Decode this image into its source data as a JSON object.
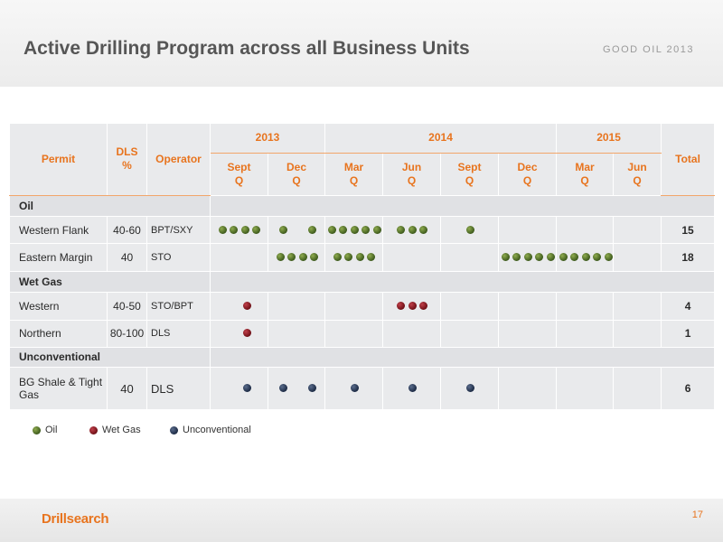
{
  "slide": {
    "title": "Active Drilling Program across all Business Units",
    "conference": "GOOD OIL 2013",
    "page_number": "17",
    "logo_text": "Drillsearch"
  },
  "table": {
    "headers": {
      "permit": "Permit",
      "dls_pct": "DLS %",
      "operator": "Operator",
      "total": "Total",
      "years": [
        "2013",
        "2014",
        "2015"
      ],
      "quarters": [
        "Sept Q",
        "Dec Q",
        "Mar Q",
        "Jun Q",
        "Sept Q",
        "Dec Q",
        "Mar Q",
        "Jun Q"
      ]
    },
    "sections": [
      {
        "name": "Oil",
        "rows": [
          {
            "permit": "Western Flank",
            "dls": "40-60",
            "operator": "BPT/SXY",
            "total": "15",
            "dot_type": "oil",
            "quarter_counts": [
              4,
              2,
              5,
              3,
              1,
              0,
              0,
              0
            ]
          },
          {
            "permit": "Eastern Margin",
            "dls": "40",
            "operator": "STO",
            "total": "18",
            "dot_type": "oil",
            "quarter_counts": [
              0,
              4,
              4,
              0,
              0,
              5,
              5,
              0
            ]
          }
        ]
      },
      {
        "name": "Wet Gas",
        "rows": [
          {
            "permit": "Western",
            "dls": "40-50",
            "operator": "STO/BPT",
            "total": "4",
            "dot_type": "gas",
            "quarter_counts": [
              1,
              0,
              0,
              3,
              0,
              0,
              0,
              0
            ]
          },
          {
            "permit": "Northern",
            "dls": "80-100",
            "operator": "DLS",
            "total": "1",
            "dot_type": "gas",
            "quarter_counts": [
              1,
              0,
              0,
              0,
              0,
              0,
              0,
              0
            ]
          }
        ]
      },
      {
        "name": "Unconventional",
        "rows": [
          {
            "permit": "BG Shale & Tight Gas",
            "dls": "40",
            "operator": "DLS",
            "total": "6",
            "dot_type": "unc",
            "quarter_counts": [
              1,
              2,
              1,
              1,
              1,
              0,
              0,
              0
            ]
          }
        ]
      }
    ]
  },
  "legend": [
    {
      "label": "Oil",
      "dot_type": "oil"
    },
    {
      "label": "Wet Gas",
      "dot_type": "gas"
    },
    {
      "label": "Unconventional",
      "dot_type": "unc"
    }
  ],
  "colors": {
    "accent": "#e8741e",
    "oil": "#4e6b27",
    "wet_gas": "#8b1c24",
    "unconventional": "#2a3a58"
  }
}
